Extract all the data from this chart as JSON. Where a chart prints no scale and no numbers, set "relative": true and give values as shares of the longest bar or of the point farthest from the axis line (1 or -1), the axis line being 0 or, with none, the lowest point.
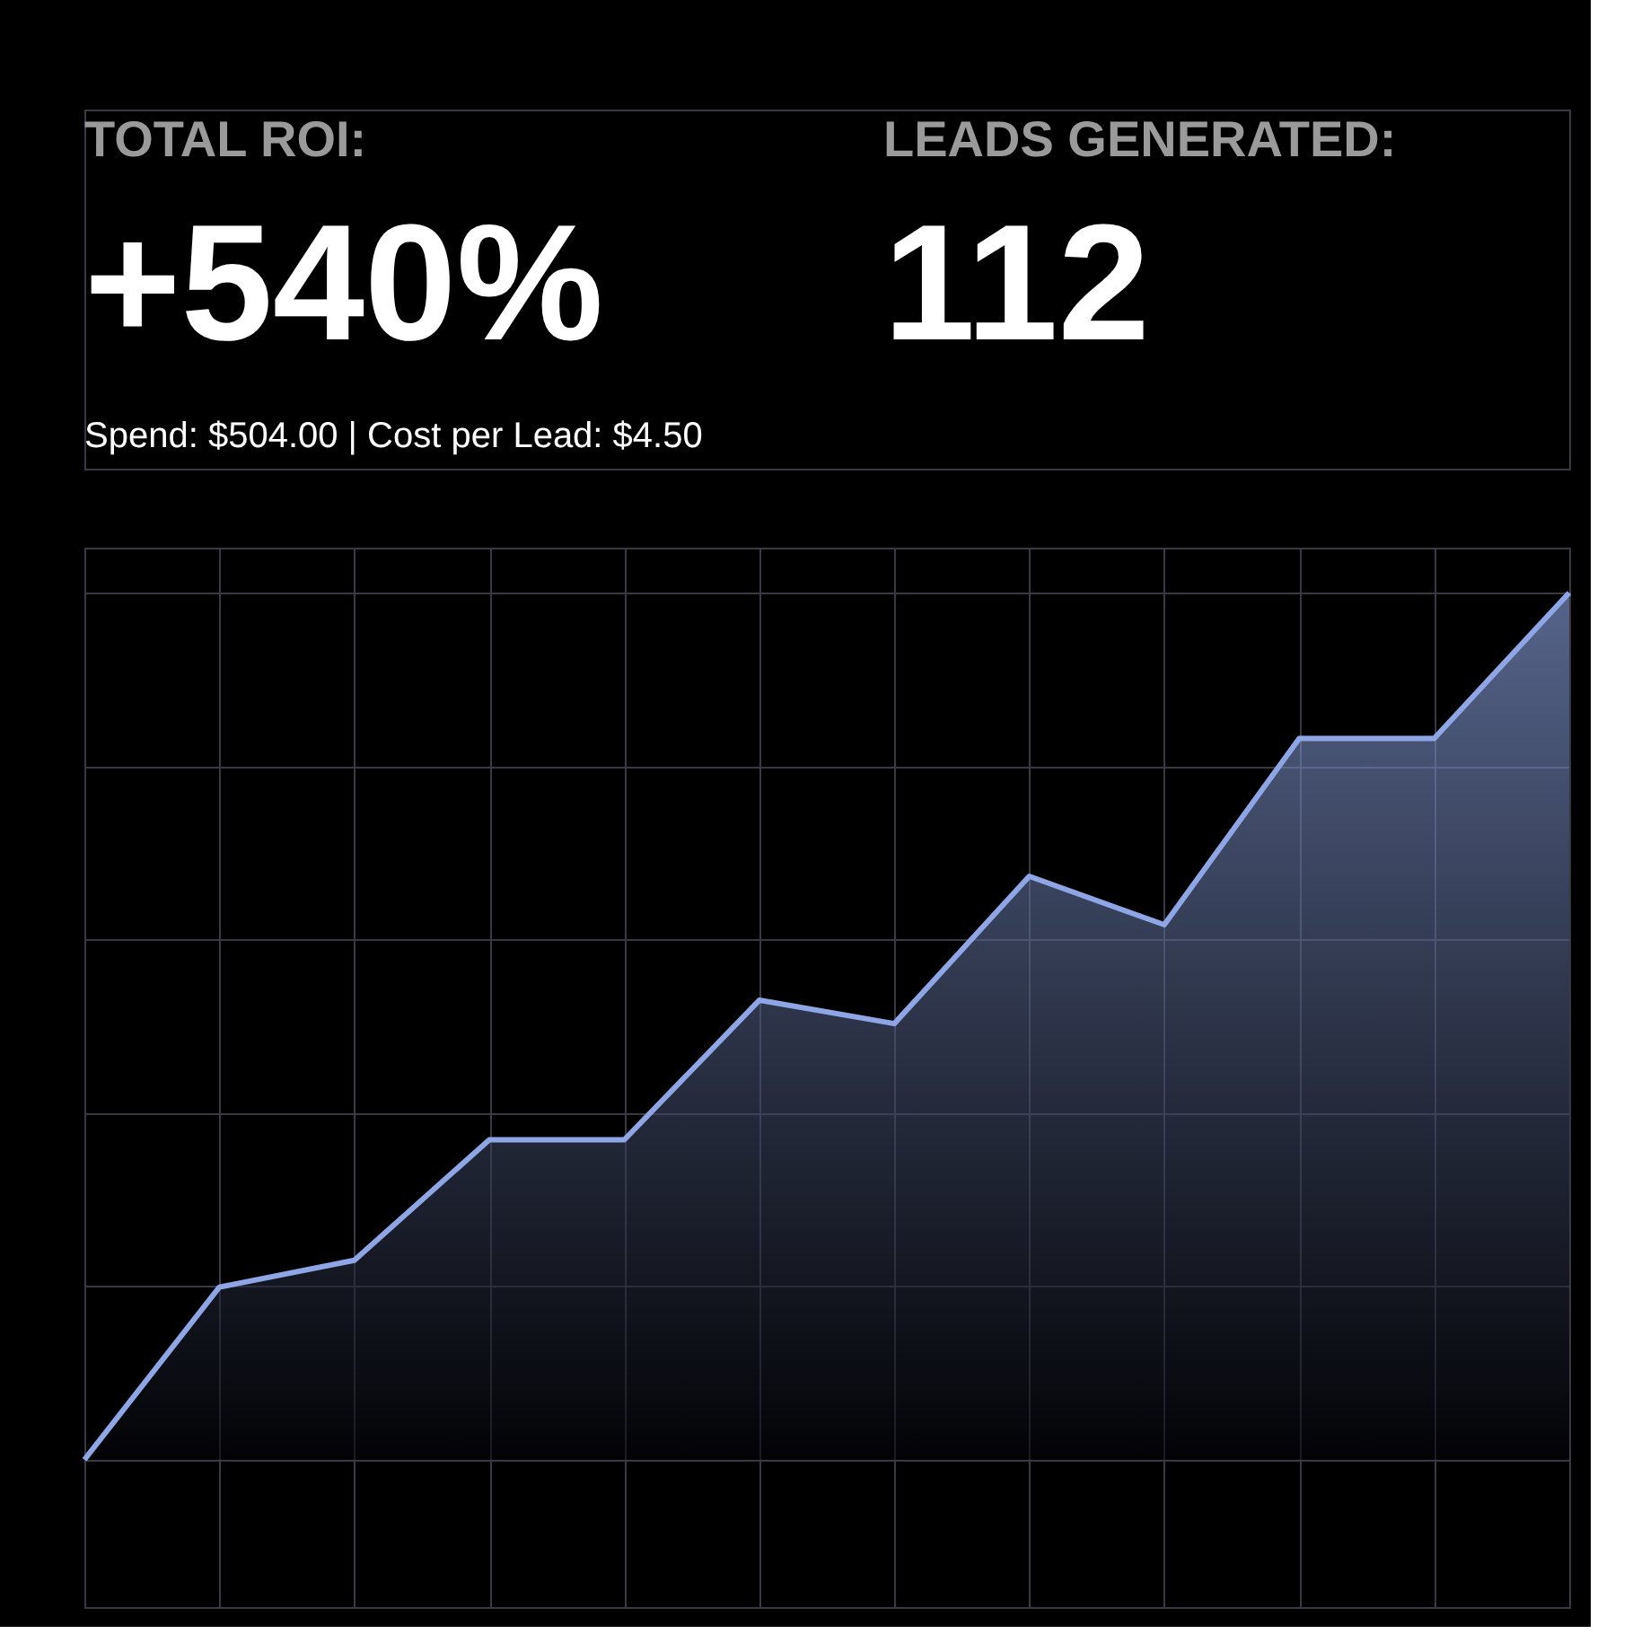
{
  "chart_data": {
    "type": "area",
    "relative": true,
    "grid": true,
    "annotations": [
      "TOTAL ROI:",
      "+540%",
      "LEADS GENERATED:",
      "112",
      "Spend: $504.00 | Cost per Lead: $4.50"
    ],
    "categories": [
      null,
      null,
      null,
      null,
      null,
      null,
      null,
      null,
      null,
      null,
      null,
      null
    ],
    "series": [
      {
        "color": "#8ea6e6",
        "values": [
          0,
          0.199,
          0.23,
          0.369,
          0.369,
          0.53,
          0.503,
          0.673,
          0.617,
          0.832,
          0.832,
          1
        ]
      }
    ]
  }
}
